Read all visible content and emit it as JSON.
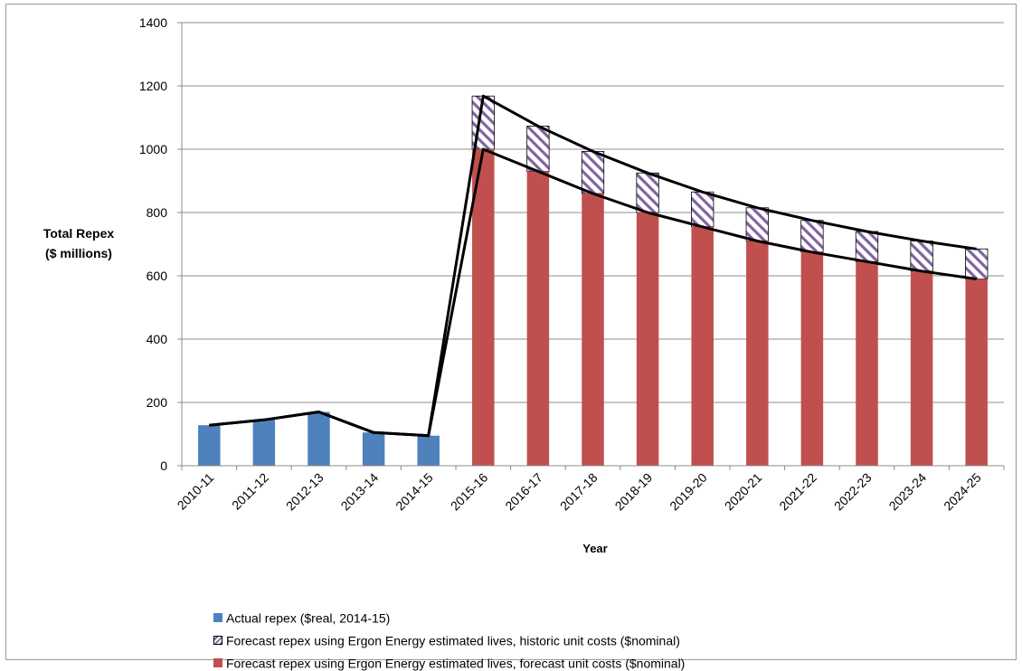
{
  "chart_data": {
    "type": "bar",
    "title": "",
    "ylabel": [
      "Total Repex",
      "($ millions)"
    ],
    "xlabel": "Year",
    "ylim": [
      0,
      1400
    ],
    "yticks": [
      0,
      200,
      400,
      600,
      800,
      1000,
      1200,
      1400
    ],
    "grid": "horizontal",
    "legend_position": "bottom",
    "categories": [
      "2010-11",
      "2011-12",
      "2012-13",
      "2013-14",
      "2014-15",
      "2015-16",
      "2016-17",
      "2017-18",
      "2018-19",
      "2019-20",
      "2020-21",
      "2021-22",
      "2022-23",
      "2023-24",
      "2024-25"
    ],
    "series": [
      {
        "name": "Actual repex ($real, 2014-15)",
        "color": "#4f81bd",
        "pattern": "solid",
        "values": [
          128,
          145,
          170,
          105,
          95,
          null,
          null,
          null,
          null,
          null,
          null,
          null,
          null,
          null,
          null
        ]
      },
      {
        "name": "Forecast repex using Ergon Energy estimated lives, forecast unit costs ($nominal)",
        "color": "#c0504d",
        "pattern": "solid",
        "values": [
          null,
          null,
          null,
          null,
          null,
          1000,
          930,
          860,
          800,
          755,
          710,
          675,
          645,
          615,
          590
        ]
      },
      {
        "name": "Forecast repex using  Ergon Energy estimated lives, historic unit costs ($nominal)",
        "color": "#8064a2",
        "pattern": "hatched",
        "values": [
          null,
          null,
          null,
          null,
          null,
          1168,
          1073,
          993,
          925,
          865,
          815,
          775,
          740,
          710,
          685
        ]
      }
    ],
    "legend_order": [
      0,
      2,
      1
    ]
  }
}
